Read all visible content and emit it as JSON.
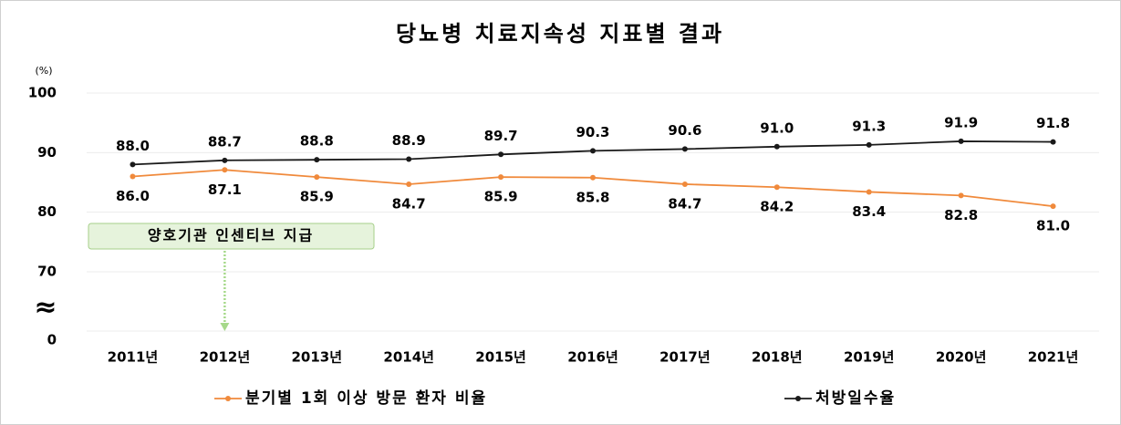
{
  "chart_data": {
    "type": "line",
    "title": "당뇨병 치료지속성 지표별 결과",
    "y_unit": "(%)",
    "axis_break_symbol": "≈",
    "annotation": "양호기관 인센티브 지급",
    "annotation_category": 1,
    "categories": [
      "2011년",
      "2012년",
      "2013년",
      "2014년",
      "2015년",
      "2016년",
      "2017년",
      "2018년",
      "2019년",
      "2020년",
      "2021년"
    ],
    "series": [
      {
        "name": "분기별 1회 이상 방문 환자 비율",
        "color": "#f08a3c",
        "values": [
          86.0,
          87.1,
          85.9,
          84.7,
          85.9,
          85.8,
          84.7,
          84.2,
          83.4,
          82.8,
          81.0
        ],
        "value_labels": [
          "86.0",
          "87.1",
          "85.9",
          "84.7",
          "85.9",
          "85.8",
          "84.7",
          "84.2",
          "83.4",
          "82.8",
          "81.0"
        ]
      },
      {
        "name": "처방일수율",
        "color": "#1a1a1a",
        "values": [
          88.0,
          88.7,
          88.8,
          88.9,
          89.7,
          90.3,
          90.6,
          91.0,
          91.3,
          91.9,
          91.8
        ],
        "value_labels": [
          "88.0",
          "88.7",
          "88.8",
          "88.9",
          "89.7",
          "90.3",
          "90.6",
          "91.0",
          "91.3",
          "91.9",
          "91.8"
        ]
      }
    ],
    "ylim": [
      0,
      100
    ],
    "yticks": [
      0,
      70,
      80,
      90,
      100
    ],
    "broken_axis": true,
    "grid": true
  }
}
